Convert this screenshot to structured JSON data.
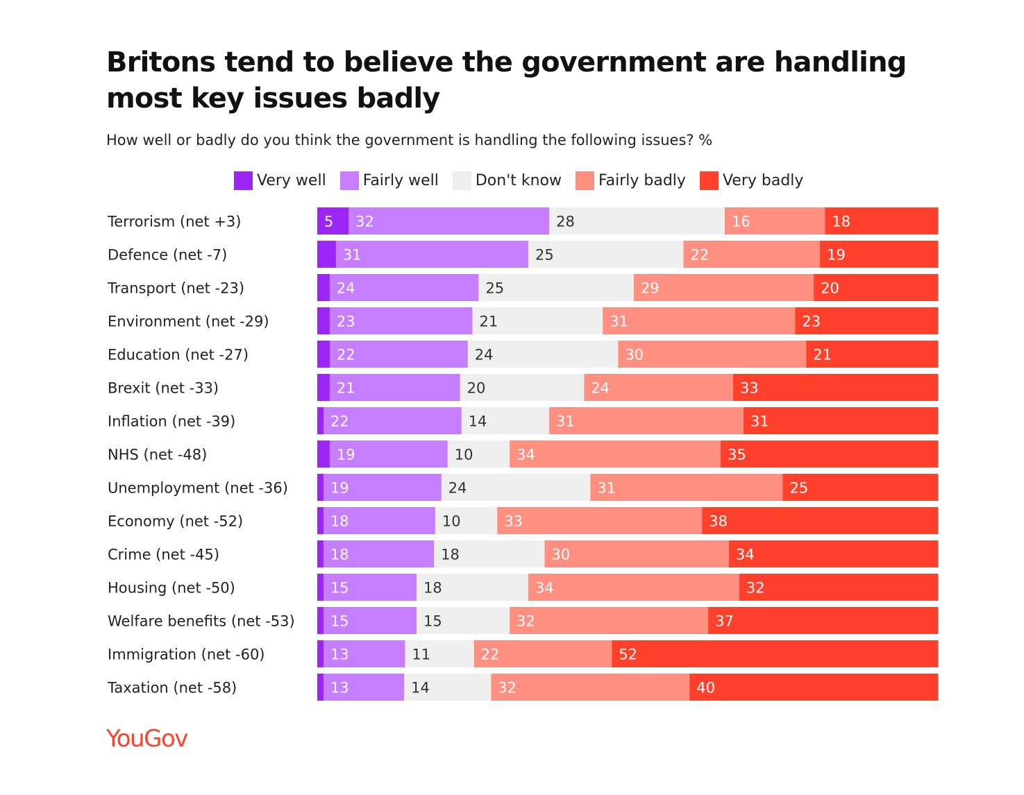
{
  "chart_data": {
    "type": "bar",
    "orientation": "horizontal",
    "stacked": true,
    "title": "Britons tend to believe the government are handling most key issues badly",
    "subtitle": "How well or badly do you think the government is handling the following issues? %",
    "categories": [
      "Terrorism (net +3)",
      "Defence (net -7)",
      "Transport (net -23)",
      "Environment (net -29)",
      "Education (net -27)",
      "Brexit (net -33)",
      "Inflation (net -39)",
      "NHS (net -48)",
      "Unemployment (net -36)",
      "Economy (net -52)",
      "Crime (net -45)",
      "Housing (net -50)",
      "Welfare benefits (net -53)",
      "Immigration (net -60)",
      "Taxation (net -58)"
    ],
    "series": [
      {
        "name": "Very well",
        "color": "#9b25f5",
        "values": [
          5,
          3,
          2,
          2,
          2,
          2,
          1,
          2,
          1,
          1,
          1,
          1,
          1,
          1,
          1
        ]
      },
      {
        "name": "Fairly well",
        "color": "#c77dff",
        "values": [
          32,
          31,
          24,
          23,
          22,
          21,
          22,
          19,
          19,
          18,
          18,
          15,
          15,
          13,
          13
        ]
      },
      {
        "name": "Don't know",
        "color": "#efefef",
        "values": [
          28,
          25,
          25,
          21,
          24,
          20,
          14,
          10,
          24,
          10,
          18,
          18,
          15,
          11,
          14
        ]
      },
      {
        "name": "Fairly badly",
        "color": "#ff8f80",
        "values": [
          16,
          22,
          29,
          31,
          30,
          24,
          31,
          34,
          31,
          33,
          30,
          34,
          32,
          22,
          32
        ]
      },
      {
        "name": "Very badly",
        "color": "#ff412c",
        "values": [
          18,
          19,
          20,
          23,
          21,
          33,
          31,
          35,
          25,
          38,
          34,
          32,
          37,
          52,
          40
        ]
      }
    ],
    "labeled_series": [
      "Fairly well",
      "Don't know",
      "Fairly badly",
      "Very badly"
    ],
    "extra_labels": [
      {
        "category": "Terrorism (net +3)",
        "series": "Very well",
        "value": 5
      }
    ],
    "legend": "top",
    "grid": false
  },
  "branding": {
    "logo_text": "YouGov"
  }
}
